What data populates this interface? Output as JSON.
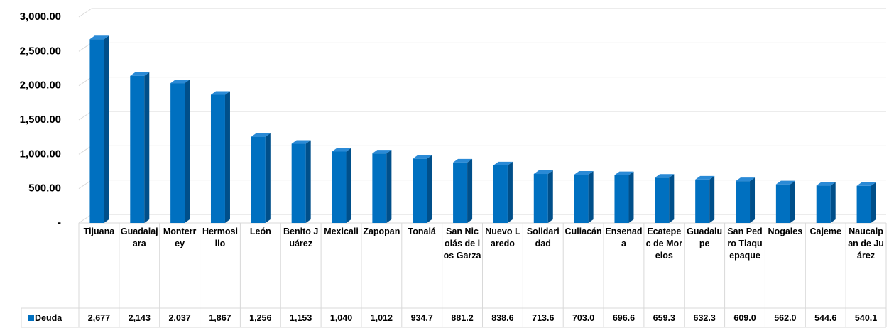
{
  "chart_data": {
    "type": "bar",
    "categories": [
      "Tijuana",
      "Guadalajara",
      "Monterrey",
      "Hermosillo",
      "León",
      "Benito Juárez",
      "Mexicali",
      "Zapopan",
      "Tonalá",
      "San Nicolás de los Garza",
      "Nuevo Laredo",
      "Solidaridad",
      "Culiacán",
      "Ensenada",
      "Ecatepec de Morelos",
      "Guadalupe",
      "San Pedro Tlaquepaque",
      "Nogales",
      "Cajeme",
      "Naucalpan de Juárez"
    ],
    "series": [
      {
        "name": "Deuda",
        "color": "#0070c0",
        "values": [
          2677,
          2143,
          2037,
          1867,
          1256,
          1153,
          1040,
          1012,
          934.7,
          881.2,
          838.6,
          713.6,
          703.0,
          696.6,
          659.3,
          632.3,
          609.0,
          562.0,
          544.6,
          540.1
        ],
        "value_labels": [
          "2,677",
          "2,143",
          "2,037",
          "1,867",
          "1,256",
          "1,153",
          "1,040",
          "1,012",
          "934.7",
          "881.2",
          "838.6",
          "713.6",
          "703.0",
          "696.6",
          "659.3",
          "632.3",
          "609.0",
          "562.0",
          "544.6",
          "540.1"
        ]
      }
    ],
    "ylim": [
      0,
      3000
    ],
    "yticks": [
      {
        "value": 0,
        "label": "-"
      },
      {
        "value": 500,
        "label": "500.00"
      },
      {
        "value": 1000,
        "label": "1,000.00"
      },
      {
        "value": 1500,
        "label": "1,500.00"
      },
      {
        "value": 2000,
        "label": "2,000.00"
      },
      {
        "value": 2500,
        "label": "2,500.00"
      },
      {
        "value": 3000,
        "label": "3,000.00"
      }
    ],
    "grid": true,
    "data_table": true
  }
}
